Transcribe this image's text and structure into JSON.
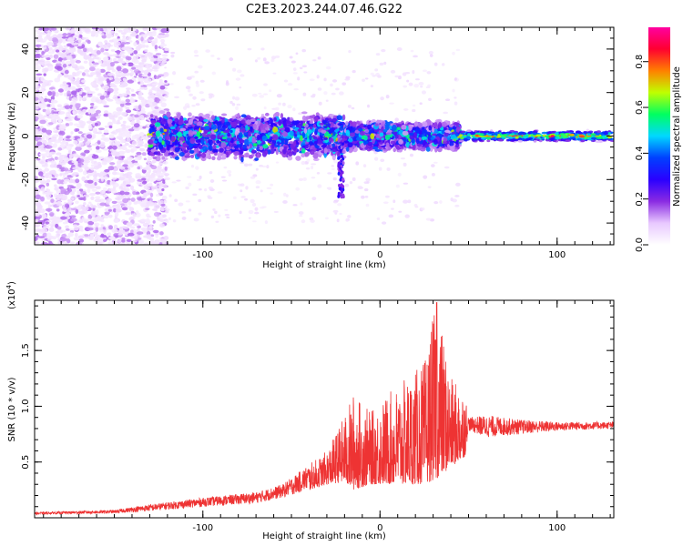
{
  "title": "C2E3.2023.244.07.46.G22",
  "chart_data": [
    {
      "type": "heatmap",
      "xlabel": "Height of straight line (km)",
      "ylabel": "Frequency (Hz)",
      "xlim": [
        -195,
        132
      ],
      "ylim": [
        -50,
        50
      ],
      "x_ticks": [
        -100,
        0,
        100
      ],
      "y_ticks": [
        -40,
        -20,
        0,
        20,
        40
      ],
      "colorbar": {
        "label": "Normalized spectral amplitude",
        "range": [
          0.0,
          0.95
        ],
        "ticks": [
          0.0,
          0.2,
          0.4,
          0.6,
          0.8
        ],
        "colors": [
          "#ffffff",
          "#e8c8ff",
          "#8a2be2",
          "#2a00ff",
          "#0040ff",
          "#00d8ff",
          "#00ff60",
          "#c0ff00",
          "#ff8000",
          "#ff0030",
          "#ff00a0"
        ]
      },
      "features": {
        "scatter_region_x": [
          -195,
          -130
        ],
        "band_segments": [
          {
            "x": [
              -130,
              -20
            ],
            "half_width_hz": 8
          },
          {
            "x": [
              -20,
              45
            ],
            "half_width_hz": 5
          },
          {
            "x": [
              45,
              132
            ],
            "half_width_hz": 2
          }
        ],
        "notch": {
          "x": -22,
          "min_freq": -28
        }
      }
    },
    {
      "type": "line",
      "xlabel": "Height of straight line (km)",
      "ylabel": "SNR (10 * v/v)",
      "y_multiplier": "(x10",
      "y_multiplier_exp": "4",
      "y_multiplier_close": ")",
      "xlim": [
        -195,
        132
      ],
      "ylim": [
        0,
        1.95
      ],
      "x_ticks": [
        -100,
        0,
        100
      ],
      "y_ticks": [
        0.5,
        1.0,
        1.5
      ],
      "series": [
        {
          "color": "#ee3333",
          "envelope": [
            {
              "x": -195,
              "base": 0.03,
              "peak": 0.05
            },
            {
              "x": -150,
              "base": 0.04,
              "peak": 0.07
            },
            {
              "x": -130,
              "base": 0.06,
              "peak": 0.12
            },
            {
              "x": -100,
              "base": 0.1,
              "peak": 0.18
            },
            {
              "x": -70,
              "base": 0.13,
              "peak": 0.23
            },
            {
              "x": -55,
              "base": 0.18,
              "peak": 0.3
            },
            {
              "x": -40,
              "base": 0.25,
              "peak": 0.48
            },
            {
              "x": -30,
              "base": 0.3,
              "peak": 0.6
            },
            {
              "x": -20,
              "base": 0.32,
              "peak": 0.92
            },
            {
              "x": -15,
              "base": 0.25,
              "peak": 1.12
            },
            {
              "x": -5,
              "base": 0.3,
              "peak": 0.95
            },
            {
              "x": 5,
              "base": 0.3,
              "peak": 1.12
            },
            {
              "x": 15,
              "base": 0.3,
              "peak": 1.25
            },
            {
              "x": 25,
              "base": 0.3,
              "peak": 1.4
            },
            {
              "x": 32,
              "base": 0.35,
              "peak": 1.95
            },
            {
              "x": 40,
              "base": 0.45,
              "peak": 1.25
            },
            {
              "x": 48,
              "base": 0.55,
              "peak": 1.15
            },
            {
              "x": 50,
              "base": 0.78,
              "peak": 0.9
            },
            {
              "x": 60,
              "base": 0.72,
              "peak": 0.92
            },
            {
              "x": 80,
              "base": 0.75,
              "peak": 0.88
            },
            {
              "x": 100,
              "base": 0.78,
              "peak": 0.86
            },
            {
              "x": 132,
              "base": 0.8,
              "peak": 0.86
            }
          ]
        }
      ]
    }
  ]
}
